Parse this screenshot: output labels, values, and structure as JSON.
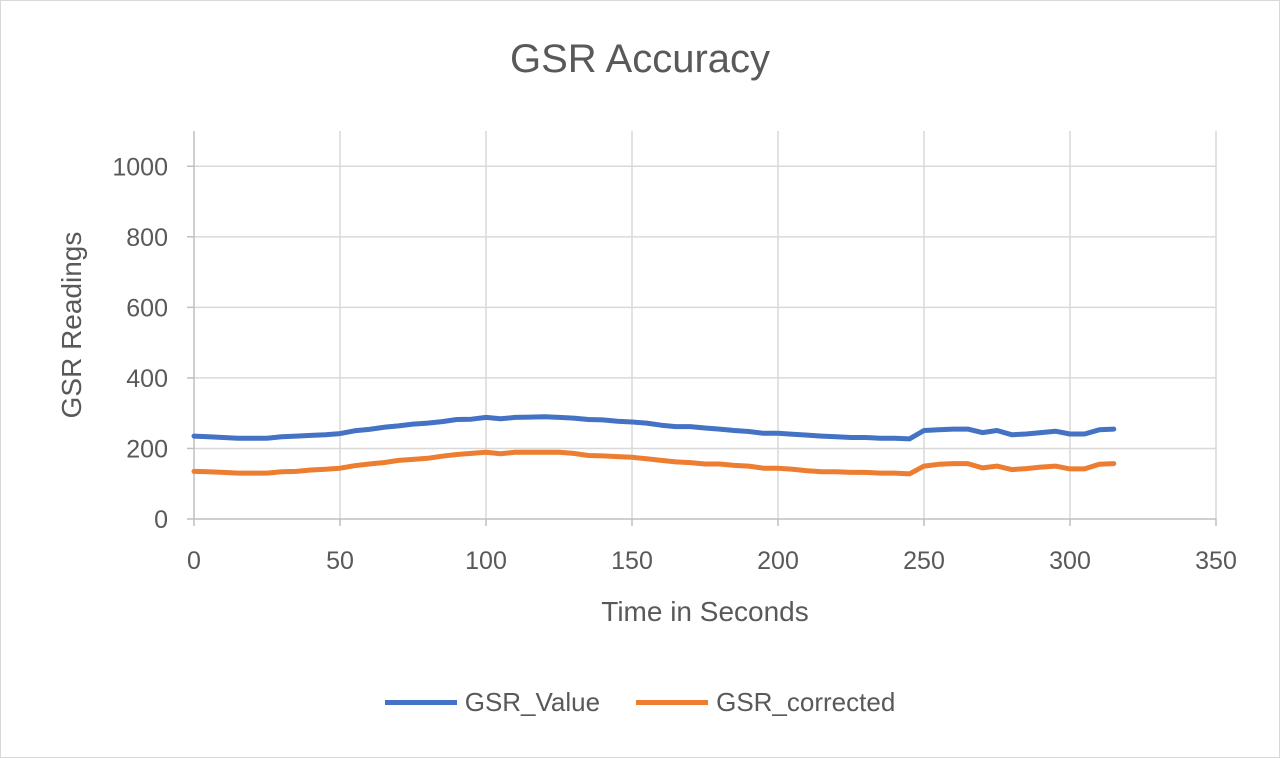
{
  "chart_data": {
    "type": "line",
    "title": "GSR Accuracy",
    "xlabel": "Time in Seconds",
    "ylabel": "GSR Readings",
    "xlim": [
      0,
      350
    ],
    "ylim": [
      0,
      1000
    ],
    "x_ticks": [
      0,
      50,
      100,
      150,
      200,
      250,
      300,
      350
    ],
    "y_ticks": [
      0,
      200,
      400,
      600,
      800,
      1000
    ],
    "grid": true,
    "legend_position": "bottom",
    "series": [
      {
        "name": "GSR_Value",
        "color": "#4472c4",
        "points": [
          [
            0,
            235
          ],
          [
            5,
            233
          ],
          [
            10,
            231
          ],
          [
            15,
            229
          ],
          [
            20,
            229
          ],
          [
            25,
            229
          ],
          [
            30,
            233
          ],
          [
            35,
            235
          ],
          [
            40,
            237
          ],
          [
            45,
            239
          ],
          [
            50,
            242
          ],
          [
            55,
            250
          ],
          [
            60,
            254
          ],
          [
            65,
            260
          ],
          [
            70,
            264
          ],
          [
            75,
            269
          ],
          [
            80,
            272
          ],
          [
            85,
            276
          ],
          [
            90,
            282
          ],
          [
            95,
            283
          ],
          [
            100,
            288
          ],
          [
            105,
            284
          ],
          [
            110,
            288
          ],
          [
            115,
            289
          ],
          [
            120,
            290
          ],
          [
            125,
            288
          ],
          [
            130,
            286
          ],
          [
            135,
            282
          ],
          [
            140,
            281
          ],
          [
            145,
            277
          ],
          [
            150,
            275
          ],
          [
            155,
            272
          ],
          [
            160,
            266
          ],
          [
            165,
            262
          ],
          [
            170,
            262
          ],
          [
            175,
            258
          ],
          [
            180,
            255
          ],
          [
            185,
            251
          ],
          [
            190,
            248
          ],
          [
            195,
            243
          ],
          [
            200,
            243
          ],
          [
            205,
            240
          ],
          [
            210,
            238
          ],
          [
            215,
            235
          ],
          [
            220,
            233
          ],
          [
            225,
            231
          ],
          [
            230,
            231
          ],
          [
            235,
            229
          ],
          [
            240,
            229
          ],
          [
            245,
            227
          ],
          [
            250,
            251
          ],
          [
            255,
            253
          ],
          [
            260,
            255
          ],
          [
            265,
            255
          ],
          [
            270,
            245
          ],
          [
            275,
            251
          ],
          [
            280,
            239
          ],
          [
            285,
            241
          ],
          [
            290,
            245
          ],
          [
            295,
            249
          ],
          [
            300,
            241
          ],
          [
            305,
            241
          ],
          [
            310,
            253
          ],
          [
            315,
            255
          ]
        ]
      },
      {
        "name": "GSR_corrected",
        "color": "#ed7d31",
        "points": [
          [
            0,
            135
          ],
          [
            5,
            134
          ],
          [
            10,
            132
          ],
          [
            15,
            130
          ],
          [
            20,
            130
          ],
          [
            25,
            130
          ],
          [
            30,
            134
          ],
          [
            35,
            135
          ],
          [
            40,
            139
          ],
          [
            45,
            141
          ],
          [
            50,
            144
          ],
          [
            55,
            151
          ],
          [
            60,
            156
          ],
          [
            65,
            160
          ],
          [
            70,
            166
          ],
          [
            75,
            169
          ],
          [
            80,
            172
          ],
          [
            85,
            178
          ],
          [
            90,
            183
          ],
          [
            95,
            186
          ],
          [
            100,
            189
          ],
          [
            105,
            185
          ],
          [
            110,
            189
          ],
          [
            115,
            189
          ],
          [
            120,
            189
          ],
          [
            125,
            189
          ],
          [
            130,
            186
          ],
          [
            135,
            180
          ],
          [
            140,
            179
          ],
          [
            145,
            177
          ],
          [
            150,
            175
          ],
          [
            155,
            171
          ],
          [
            160,
            166
          ],
          [
            165,
            162
          ],
          [
            170,
            160
          ],
          [
            175,
            156
          ],
          [
            180,
            156
          ],
          [
            185,
            152
          ],
          [
            190,
            150
          ],
          [
            195,
            144
          ],
          [
            200,
            144
          ],
          [
            205,
            141
          ],
          [
            210,
            137
          ],
          [
            215,
            134
          ],
          [
            220,
            134
          ],
          [
            225,
            132
          ],
          [
            230,
            132
          ],
          [
            235,
            130
          ],
          [
            240,
            130
          ],
          [
            245,
            128
          ],
          [
            250,
            150
          ],
          [
            255,
            155
          ],
          [
            260,
            157
          ],
          [
            265,
            157
          ],
          [
            270,
            145
          ],
          [
            275,
            150
          ],
          [
            280,
            140
          ],
          [
            285,
            143
          ],
          [
            290,
            147
          ],
          [
            295,
            150
          ],
          [
            300,
            142
          ],
          [
            305,
            142
          ],
          [
            310,
            155
          ],
          [
            315,
            157
          ]
        ]
      }
    ]
  }
}
